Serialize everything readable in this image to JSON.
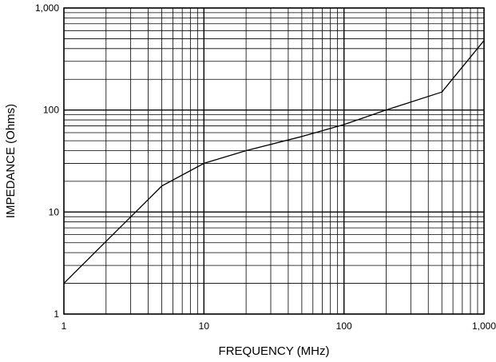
{
  "chart_data": {
    "type": "line",
    "title": "",
    "xlabel": "FREQUENCY (MHz)",
    "ylabel": "IMPEDANCE (Ohms)",
    "xscale": "log",
    "yscale": "log",
    "xlim": [
      1,
      1000
    ],
    "ylim": [
      1,
      1000
    ],
    "grid": true,
    "legend": "none",
    "x_ticks": [
      {
        "value": 1,
        "label": "1"
      },
      {
        "value": 10,
        "label": "10"
      },
      {
        "value": 100,
        "label": "100"
      },
      {
        "value": 1000,
        "label": "1,000"
      }
    ],
    "y_ticks": [
      {
        "value": 1,
        "label": "1"
      },
      {
        "value": 10,
        "label": "10"
      },
      {
        "value": 100,
        "label": "100"
      },
      {
        "value": 1000,
        "label": "1,000"
      }
    ],
    "series": [
      {
        "x": [
          1,
          5,
          10,
          20,
          50,
          100,
          200,
          500,
          1000
        ],
        "y": [
          2,
          18,
          30,
          40,
          55,
          72,
          100,
          150,
          480
        ]
      }
    ],
    "colors": {
      "line": "#000000",
      "grid": "#000000",
      "background": "#ffffff"
    }
  }
}
